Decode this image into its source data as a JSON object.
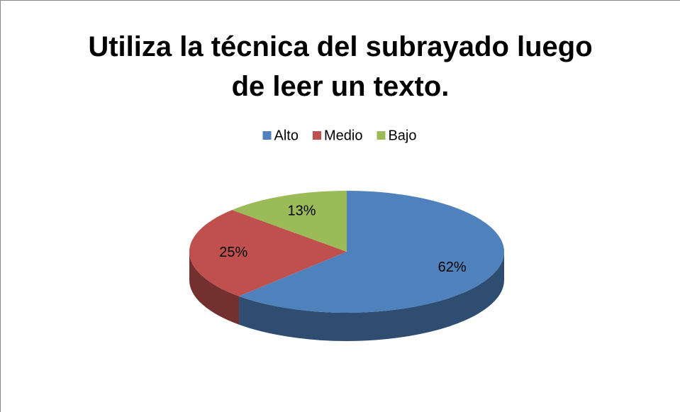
{
  "chart_data": {
    "type": "pie",
    "title": "Utiliza la técnica del subrayado luego de leer un texto.",
    "categories": [
      "Alto",
      "Medio",
      "Bajo"
    ],
    "values": [
      62,
      25,
      13
    ],
    "value_labels": [
      "62%",
      "25%",
      "13%"
    ],
    "colors": [
      "#4f81bd",
      "#c0504d",
      "#9bbb59"
    ],
    "legend": "top"
  }
}
